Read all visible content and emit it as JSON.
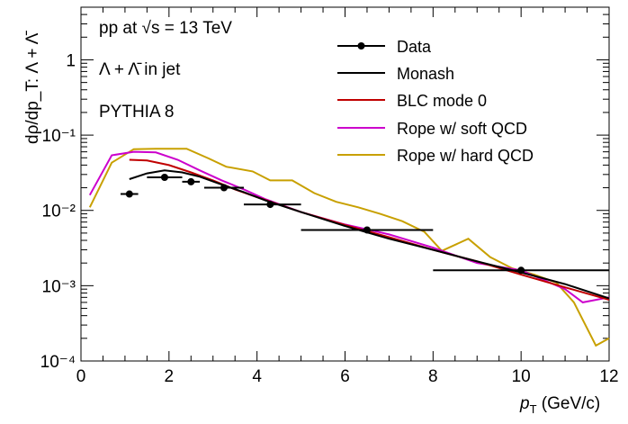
{
  "chart_data": {
    "type": "line",
    "title": "",
    "annotations": {
      "collision": "pp at √s = 13 TeV",
      "particle": "Λ + Λ̄ in jet",
      "generator": "PYTHIA 8"
    },
    "xlabel": {
      "var": "p",
      "sub": "T",
      "unit": " (GeV/c)"
    },
    "ylabel": "dρ/dp_T: Λ + Λ̄",
    "xlim": [
      0,
      12
    ],
    "ylim": [
      0.0001,
      5
    ],
    "yscale": "log",
    "x_ticks": [
      "0",
      "2",
      "4",
      "6",
      "8",
      "10",
      "12"
    ],
    "y_ticks": [
      "10⁻⁴",
      "10⁻³",
      "10⁻²",
      "10⁻¹",
      "1"
    ],
    "legend_position": "top-right",
    "legend": [
      "Data",
      "Monash",
      "BLC mode 0",
      "Rope w/ soft QCD",
      "Rope w/ hard QCD"
    ],
    "colors": {
      "data": "#000000",
      "monash": "#000000",
      "blc": "#c00000",
      "rope_soft": "#cc00cc",
      "rope_hard": "#c8a000"
    },
    "series": [
      {
        "name": "Data",
        "kind": "points",
        "points": [
          {
            "x": 1.1,
            "xlo": 0.9,
            "xhi": 1.3,
            "y": 0.0165
          },
          {
            "x": 1.9,
            "xlo": 1.5,
            "xhi": 2.3,
            "y": 0.0275
          },
          {
            "x": 2.5,
            "xlo": 2.3,
            "xhi": 2.7,
            "y": 0.024
          },
          {
            "x": 3.25,
            "xlo": 2.8,
            "xhi": 3.7,
            "y": 0.02
          },
          {
            "x": 4.3,
            "xlo": 3.7,
            "xhi": 5.0,
            "y": 0.012
          },
          {
            "x": 6.5,
            "xlo": 5.0,
            "xhi": 8.0,
            "y": 0.0055
          },
          {
            "x": 10.0,
            "xlo": 8.0,
            "xhi": 12.0,
            "y": 0.0016
          }
        ]
      },
      {
        "name": "Monash",
        "kind": "line",
        "x": [
          1.1,
          1.5,
          1.9,
          2.3,
          2.7,
          3.2,
          3.7,
          4.2,
          5.0,
          6.0,
          7.0,
          8.0,
          9.0,
          10.0,
          11.0,
          12.0
        ],
        "y": [
          0.026,
          0.031,
          0.034,
          0.032,
          0.028,
          0.022,
          0.0175,
          0.0135,
          0.0095,
          0.0062,
          0.0042,
          0.003,
          0.0021,
          0.0015,
          0.00105,
          0.00068
        ]
      },
      {
        "name": "BLC mode 0",
        "kind": "line",
        "x": [
          1.1,
          1.5,
          2.0,
          2.5,
          3.0,
          3.5,
          4.0,
          5.0,
          6.0,
          7.0,
          8.0,
          9.0,
          10.0,
          11.0,
          12.0
        ],
        "y": [
          0.047,
          0.046,
          0.04,
          0.032,
          0.025,
          0.019,
          0.015,
          0.0095,
          0.0064,
          0.0044,
          0.003,
          0.0021,
          0.0014,
          0.00095,
          0.00065
        ]
      },
      {
        "name": "Rope w/ soft QCD",
        "kind": "line",
        "x": [
          0.2,
          0.7,
          1.2,
          1.7,
          2.2,
          2.7,
          3.2,
          3.7,
          4.2,
          5.0,
          6.0,
          6.5,
          7.0,
          8.0,
          9.0,
          10.0,
          11.0,
          11.4,
          12.0
        ],
        "y": [
          0.016,
          0.054,
          0.06,
          0.059,
          0.047,
          0.034,
          0.025,
          0.019,
          0.014,
          0.0095,
          0.0065,
          0.0056,
          0.0048,
          0.0032,
          0.002,
          0.0016,
          0.0009,
          0.0006,
          0.0007
        ]
      },
      {
        "name": "Rope w/ hard QCD",
        "kind": "line",
        "x": [
          0.2,
          0.7,
          1.2,
          1.7,
          2.4,
          2.9,
          3.3,
          3.9,
          4.3,
          4.8,
          5.3,
          5.8,
          6.3,
          6.8,
          7.3,
          7.8,
          8.2,
          8.8,
          9.3,
          9.8,
          10.3,
          10.8,
          11.2,
          11.7,
          12.0
        ],
        "y": [
          0.011,
          0.043,
          0.065,
          0.066,
          0.066,
          0.049,
          0.038,
          0.033,
          0.025,
          0.025,
          0.017,
          0.013,
          0.011,
          0.009,
          0.0072,
          0.0052,
          0.0029,
          0.0042,
          0.0024,
          0.0017,
          0.0014,
          0.0011,
          0.0006,
          0.00016,
          0.0002
        ]
      }
    ]
  }
}
